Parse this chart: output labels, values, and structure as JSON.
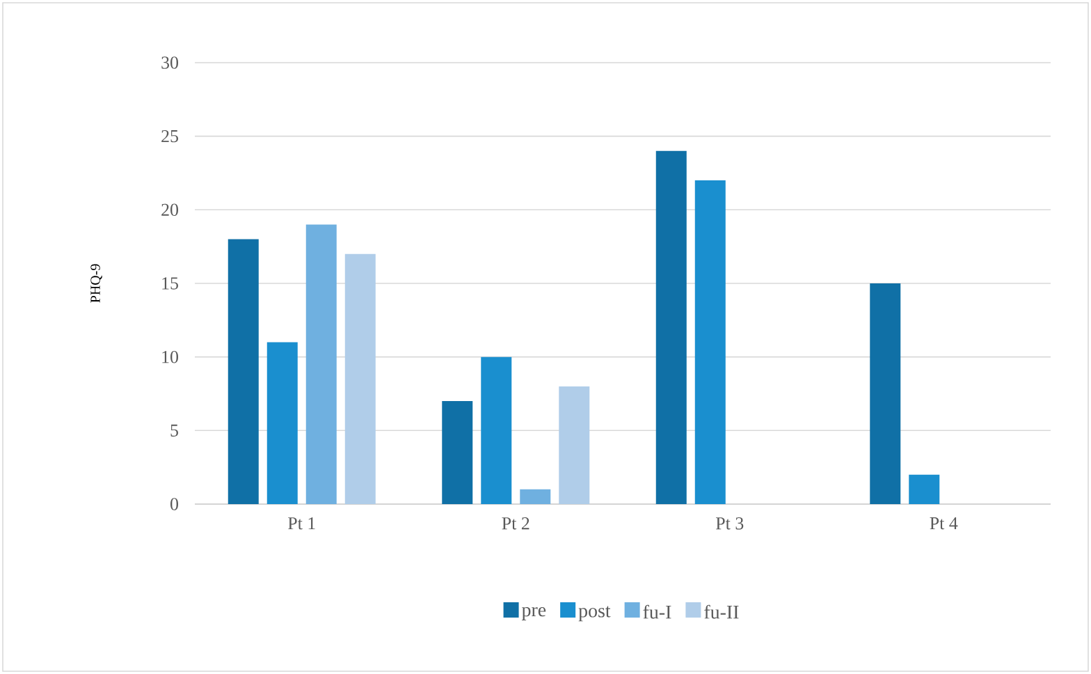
{
  "chart_data": {
    "type": "bar",
    "ylabel": "PHQ-9",
    "categories": [
      "Pt 1",
      "Pt 2",
      "Pt 3",
      "Pt 4"
    ],
    "series": [
      {
        "name": "pre",
        "color": "#1070a6",
        "values": [
          18,
          7,
          24,
          15
        ]
      },
      {
        "name": "post",
        "color": "#1a8fcf",
        "values": [
          11,
          10,
          22,
          2
        ]
      },
      {
        "name": "fu-I",
        "color": "#6fb0e0",
        "values": [
          19,
          1,
          null,
          null
        ]
      },
      {
        "name": "fu-II",
        "color": "#b0cde9",
        "values": [
          17,
          8,
          null,
          null
        ]
      }
    ],
    "ylim": [
      0,
      30
    ],
    "yticks": [
      0,
      5,
      10,
      15,
      20,
      25,
      30
    ],
    "grid": "y",
    "legend": "bottom"
  }
}
